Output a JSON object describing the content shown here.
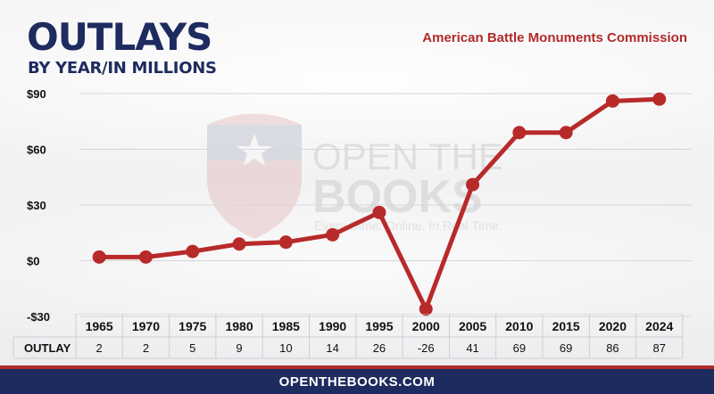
{
  "header": {
    "title": "OUTLAYS",
    "subtitle": "BY YEAR/IN MILLIONS",
    "agency": "American Battle Monuments Commission"
  },
  "watermark": {
    "line1": "OPEN THE",
    "line2": "BOOKS",
    "tagline": "Every Dime. Online. In Real Time."
  },
  "footer": {
    "text": "OPENTHEBOOKS.COM"
  },
  "colors": {
    "navy": "#1d2b5e",
    "red": "#b22a2a",
    "line": "#b82a2a"
  },
  "chart_data": {
    "type": "line",
    "categories": [
      "1965",
      "1970",
      "1975",
      "1980",
      "1985",
      "1990",
      "1995",
      "2000",
      "2005",
      "2010",
      "2015",
      "2020",
      "2024"
    ],
    "series": [
      {
        "values": [
          2,
          2,
          5,
          9,
          10,
          14,
          26,
          -26,
          41,
          69,
          69,
          86,
          87
        ]
      }
    ],
    "ylim": [
      -30,
      90
    ],
    "yticks": [
      -30,
      0,
      30,
      60,
      90
    ],
    "ytick_labels": [
      "-$30",
      "$0",
      "$30",
      "$60",
      "$90"
    ],
    "grid": true,
    "table": {
      "row_label": "OUTLAY",
      "values": [
        "2",
        "2",
        "5",
        "9",
        "10",
        "14",
        "26",
        "-26",
        "41",
        "69",
        "69",
        "86",
        "87"
      ]
    }
  }
}
